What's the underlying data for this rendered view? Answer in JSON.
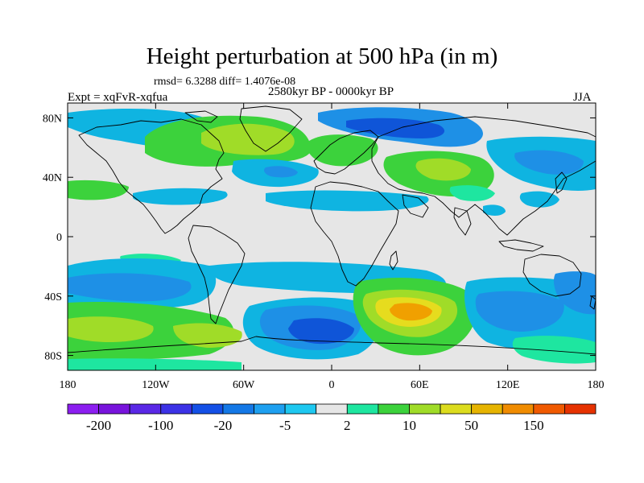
{
  "header": {
    "title": "Height perturbation at 500 hPa (in m)",
    "stats": "rmsd= 6.3288 diff= 1.4076e-08",
    "period": "2580kyr BP - 0000kyr BP",
    "experiment": "Expt = xqFvR-xqfua",
    "season": "JJA"
  },
  "map": {
    "lon_range": [
      -180,
      180
    ],
    "lat_range": [
      -90,
      90
    ],
    "x_ticks": [
      {
        "lon": -180,
        "label": "180"
      },
      {
        "lon": -120,
        "label": "120W"
      },
      {
        "lon": -60,
        "label": "60W"
      },
      {
        "lon": 0,
        "label": "0"
      },
      {
        "lon": 60,
        "label": "60E"
      },
      {
        "lon": 120,
        "label": "120E"
      },
      {
        "lon": 180,
        "label": "180"
      }
    ],
    "y_ticks": [
      {
        "lat": 80,
        "label": "80N"
      },
      {
        "lat": 40,
        "label": "40N"
      },
      {
        "lat": 0,
        "label": "0"
      },
      {
        "lat": -40,
        "label": "40S"
      },
      {
        "lat": -80,
        "label": "80S"
      }
    ],
    "colors": {
      "neutral": "#e6e6e6",
      "light_blue": "#0fb4e1",
      "mid_blue": "#1e90e6",
      "deep_blue": "#0f55d8",
      "light_green": "#1ee6a0",
      "green": "#3cd23c",
      "yellow_green": "#a0dc28",
      "yellow": "#e6dc1e",
      "orange": "#f0a000",
      "coast": "#000000"
    }
  },
  "colorbar": {
    "colors": [
      "#8c1ef0",
      "#7814dc",
      "#5a28e6",
      "#3c32e6",
      "#1450e6",
      "#1478e6",
      "#1ea0f0",
      "#1ec8f0",
      "#e6e6e6",
      "#1ee6a0",
      "#3cd23c",
      "#a0dc28",
      "#dcdc1e",
      "#e6b400",
      "#f08c00",
      "#f05a00",
      "#e63200"
    ],
    "labels": [
      "-200",
      "-100",
      "-20",
      "-5",
      "2",
      "10",
      "50",
      "150"
    ]
  }
}
